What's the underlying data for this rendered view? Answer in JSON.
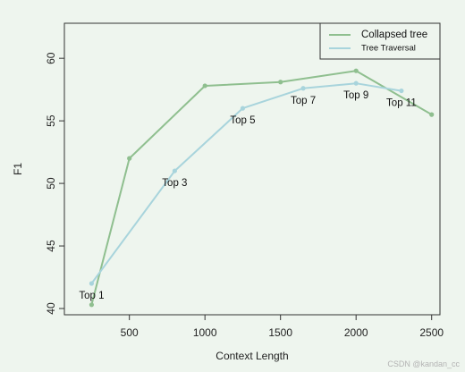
{
  "chart_data": {
    "type": "line",
    "xlabel": "Context Length",
    "ylabel": "F1",
    "xlim": [
      70,
      2555
    ],
    "ylim": [
      39.5,
      62.8
    ],
    "x_ticks": [
      500,
      1000,
      1500,
      2000,
      2500
    ],
    "y_ticks": [
      40,
      45,
      50,
      55,
      60
    ],
    "grid": false,
    "legend_position": "top-right",
    "series": [
      {
        "name": "Collapsed tree",
        "color": "#8fbf8f",
        "x": [
          250,
          500,
          1000,
          1500,
          2000,
          2500
        ],
        "y": [
          40.3,
          52.0,
          57.8,
          58.1,
          59.0,
          55.5
        ]
      },
      {
        "name": "Tree Traversal",
        "color": "#a8d4dc",
        "x": [
          250,
          800,
          1250,
          1650,
          2000,
          2300
        ],
        "y": [
          42.0,
          51.0,
          56.0,
          57.6,
          58.0,
          57.4
        ]
      }
    ],
    "annotations": [
      {
        "text": "Top 1",
        "x": 250,
        "y": 41.0
      },
      {
        "text": "Top 3",
        "x": 800,
        "y": 50.0
      },
      {
        "text": "Top 5",
        "x": 1250,
        "y": 55.0
      },
      {
        "text": "Top 7",
        "x": 1650,
        "y": 56.6
      },
      {
        "text": "Top 9",
        "x": 2000,
        "y": 57.0
      },
      {
        "text": "Top 11",
        "x": 2300,
        "y": 56.4
      }
    ]
  },
  "watermark": "CSDN @kandan_cc"
}
